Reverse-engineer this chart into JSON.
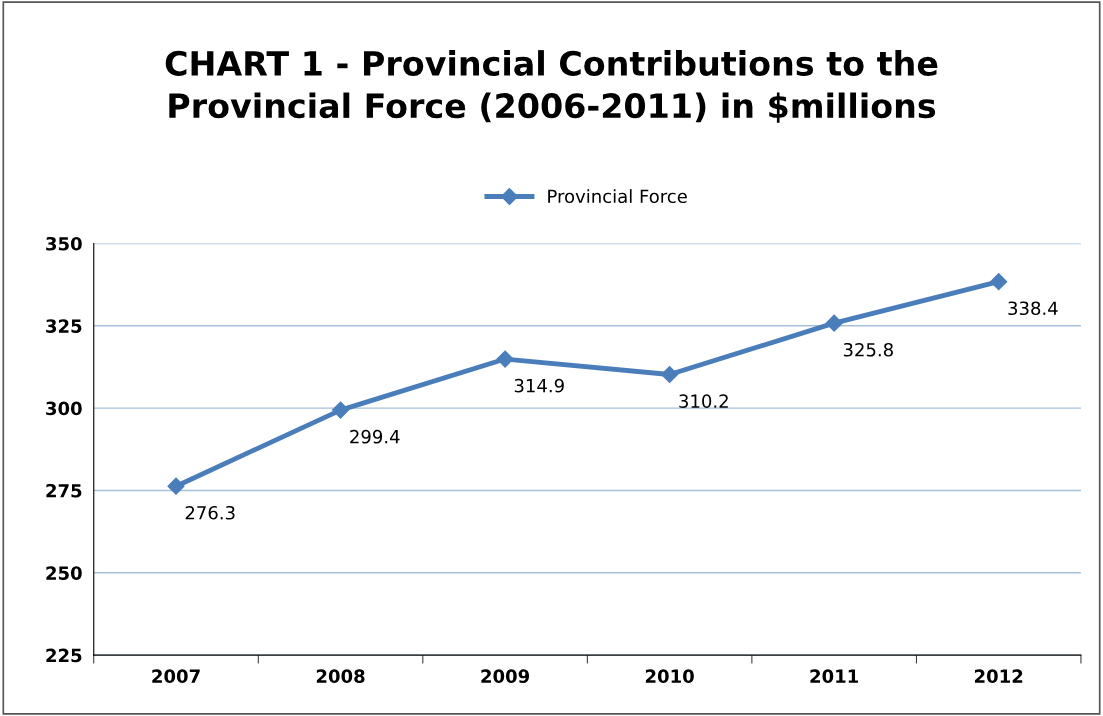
{
  "chart_data": {
    "type": "line",
    "title": "CHART 1 - Provincial Contributions to the\nProvincial Force (2006-2011) in $millions",
    "categories": [
      "2007",
      "2008",
      "2009",
      "2010",
      "2011",
      "2012"
    ],
    "series": [
      {
        "name": "Provincial Force",
        "color": "#4a7ebb",
        "values": [
          276.3,
          299.4,
          314.9,
          310.2,
          325.8,
          338.4
        ]
      }
    ],
    "ylim": [
      225,
      350
    ],
    "yticks": [
      225,
      250,
      275,
      300,
      325,
      350
    ],
    "grid": "y",
    "legend": "top",
    "marker": "diamond",
    "line_style": "solid",
    "data_labels": true
  }
}
